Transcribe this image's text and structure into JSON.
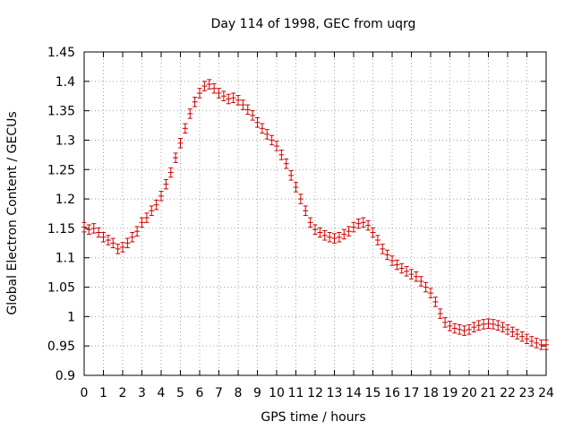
{
  "chart_data": {
    "type": "scatter",
    "title": "Day 114 of 1998, GEC from uqrg",
    "xlabel": "GPS time / hours",
    "ylabel": "Global Electron Content / GECUs",
    "xlim": [
      0,
      24
    ],
    "ylim": [
      0.9,
      1.45
    ],
    "grid": true,
    "x_ticks": [
      "0",
      "1",
      "2",
      "3",
      "4",
      "5",
      "6",
      "7",
      "8",
      "9",
      "10",
      "11",
      "12",
      "13",
      "14",
      "15",
      "16",
      "17",
      "18",
      "19",
      "20",
      "21",
      "22",
      "23",
      "24"
    ],
    "y_ticks": [
      "0.9",
      "0.95",
      "1",
      "1.05",
      "1.1",
      "1.15",
      "1.2",
      "1.25",
      "1.3",
      "1.35",
      "1.4",
      "1.45"
    ],
    "error_bar": 0.008,
    "series": [
      {
        "color": "#cc0000",
        "x": [
          0,
          0.25,
          0.5,
          0.75,
          1,
          1.25,
          1.5,
          1.75,
          2,
          2.25,
          2.5,
          2.75,
          3,
          3.25,
          3.5,
          3.75,
          4,
          4.25,
          4.5,
          4.75,
          5,
          5.25,
          5.5,
          5.75,
          6,
          6.25,
          6.5,
          6.75,
          7,
          7.25,
          7.5,
          7.75,
          8,
          8.25,
          8.5,
          8.75,
          9,
          9.25,
          9.5,
          9.75,
          10,
          10.25,
          10.5,
          10.75,
          11,
          11.25,
          11.5,
          11.75,
          12,
          12.25,
          12.5,
          12.75,
          13,
          13.25,
          13.5,
          13.75,
          14,
          14.25,
          14.5,
          14.75,
          15,
          15.25,
          15.5,
          15.75,
          16,
          16.25,
          16.5,
          16.75,
          17,
          17.25,
          17.5,
          17.75,
          18,
          18.25,
          18.5,
          18.75,
          19,
          19.25,
          19.5,
          19.75,
          20,
          20.25,
          20.5,
          20.75,
          21,
          21.25,
          21.5,
          21.75,
          22,
          22.25,
          22.5,
          22.75,
          23,
          23.25,
          23.5,
          23.75,
          24
        ],
        "y": [
          1.152,
          1.148,
          1.15,
          1.143,
          1.135,
          1.13,
          1.125,
          1.115,
          1.118,
          1.125,
          1.135,
          1.145,
          1.16,
          1.168,
          1.18,
          1.19,
          1.205,
          1.225,
          1.245,
          1.27,
          1.295,
          1.32,
          1.345,
          1.365,
          1.38,
          1.392,
          1.395,
          1.388,
          1.38,
          1.375,
          1.37,
          1.372,
          1.368,
          1.36,
          1.352,
          1.342,
          1.33,
          1.32,
          1.31,
          1.3,
          1.29,
          1.275,
          1.26,
          1.24,
          1.22,
          1.2,
          1.18,
          1.16,
          1.148,
          1.143,
          1.138,
          1.135,
          1.133,
          1.135,
          1.14,
          1.145,
          1.152,
          1.158,
          1.16,
          1.155,
          1.143,
          1.13,
          1.115,
          1.105,
          1.095,
          1.088,
          1.082,
          1.077,
          1.072,
          1.068,
          1.06,
          1.05,
          1.04,
          1.025,
          1.005,
          0.99,
          0.984,
          0.98,
          0.978,
          0.976,
          0.978,
          0.982,
          0.985,
          0.987,
          0.988,
          0.987,
          0.985,
          0.982,
          0.978,
          0.974,
          0.97,
          0.966,
          0.962,
          0.958,
          0.955,
          0.952,
          0.952
        ]
      }
    ]
  }
}
